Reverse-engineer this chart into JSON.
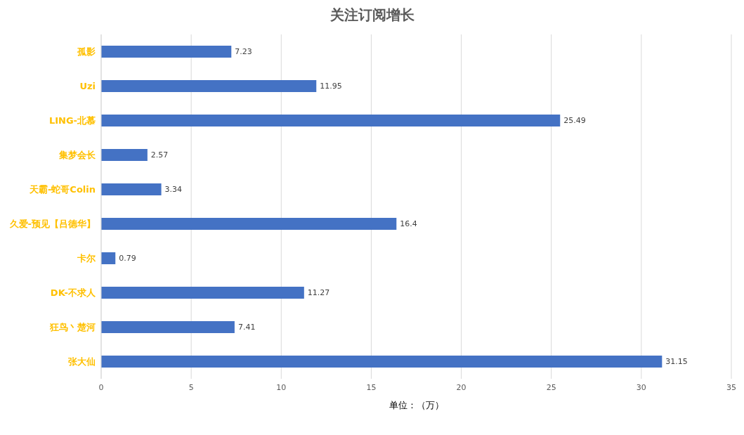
{
  "chart_data": {
    "type": "bar",
    "orientation": "horizontal",
    "title": "关注订阅增长",
    "xlabel": "单位：（万）",
    "categories": [
      "孤影",
      "Uzi",
      "LING-北慕",
      "集梦会长",
      "天霸-蛇哥Colin",
      "久爱-预见【吕德华】",
      "卡尔",
      "DK-不求人",
      "狂鸟丶楚河",
      "张大仙"
    ],
    "values": [
      7.23,
      11.95,
      25.49,
      2.57,
      3.34,
      16.4,
      0.79,
      11.27,
      7.41,
      31.15
    ],
    "color": "#4472c4",
    "xlim": [
      0,
      35
    ],
    "xticks": [
      0,
      5,
      10,
      15,
      20,
      25,
      30,
      35
    ],
    "grid": "x",
    "data_labels": true
  }
}
